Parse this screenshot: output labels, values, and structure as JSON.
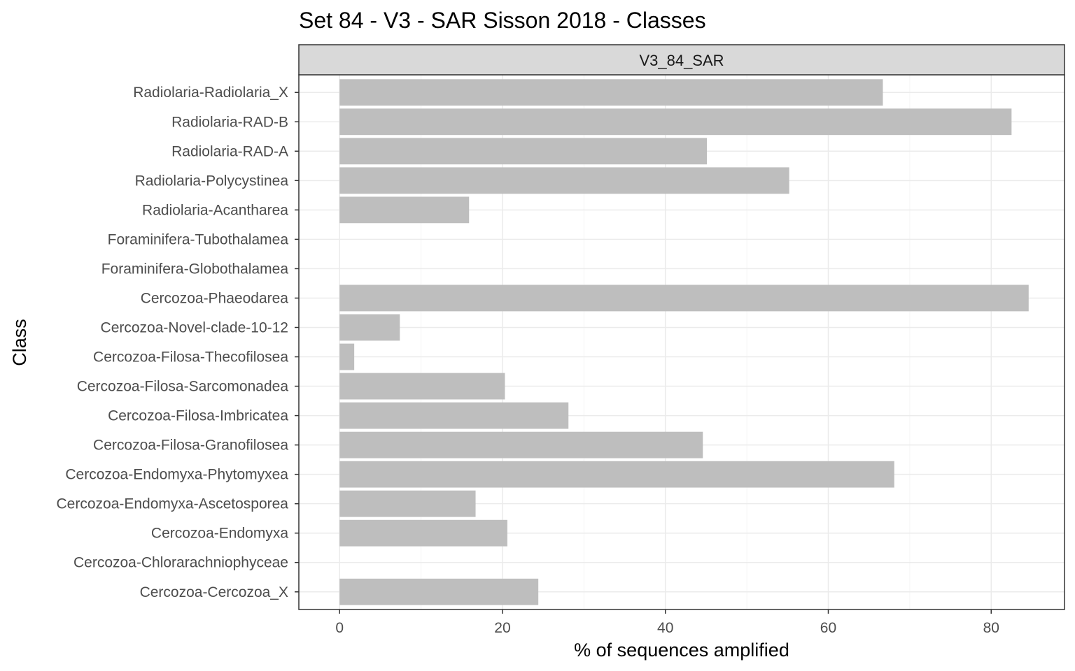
{
  "chart_data": {
    "type": "bar",
    "orientation": "horizontal",
    "title": "Set 84 - V3 - SAR Sisson 2018 - Classes",
    "facet_label": "V3_84_SAR",
    "xlabel": "% of sequences amplified",
    "ylabel": "Class",
    "xlim": [
      -5,
      89
    ],
    "x_ticks": [
      0,
      20,
      40,
      60,
      80
    ],
    "grid": true,
    "categories": [
      "Radiolaria-Radiolaria_X",
      "Radiolaria-RAD-B",
      "Radiolaria-RAD-A",
      "Radiolaria-Polycystinea",
      "Radiolaria-Acantharea",
      "Foraminifera-Tubothalamea",
      "Foraminifera-Globothalamea",
      "Cercozoa-Phaeodarea",
      "Cercozoa-Novel-clade-10-12",
      "Cercozoa-Filosa-Thecofilosea",
      "Cercozoa-Filosa-Sarcomonadea",
      "Cercozoa-Filosa-Imbricatea",
      "Cercozoa-Filosa-Granofilosea",
      "Cercozoa-Endomyxa-Phytomyxea",
      "Cercozoa-Endomyxa-Ascetosporea",
      "Cercozoa-Endomyxa",
      "Cercozoa-Chlorarachniophyceae",
      "Cercozoa-Cercozoa_X"
    ],
    "values": [
      66.7,
      82.5,
      45.1,
      55.2,
      15.9,
      0,
      0,
      84.6,
      7.4,
      1.8,
      20.3,
      28.1,
      44.6,
      68.1,
      16.7,
      20.6,
      0,
      24.4
    ],
    "colors": {
      "bar": "#bebebe",
      "panel_border": "#333333",
      "strip_fill": "#d9d9d9",
      "grid_major": "#ebebeb",
      "grid_minor": "#f5f5f5"
    }
  }
}
